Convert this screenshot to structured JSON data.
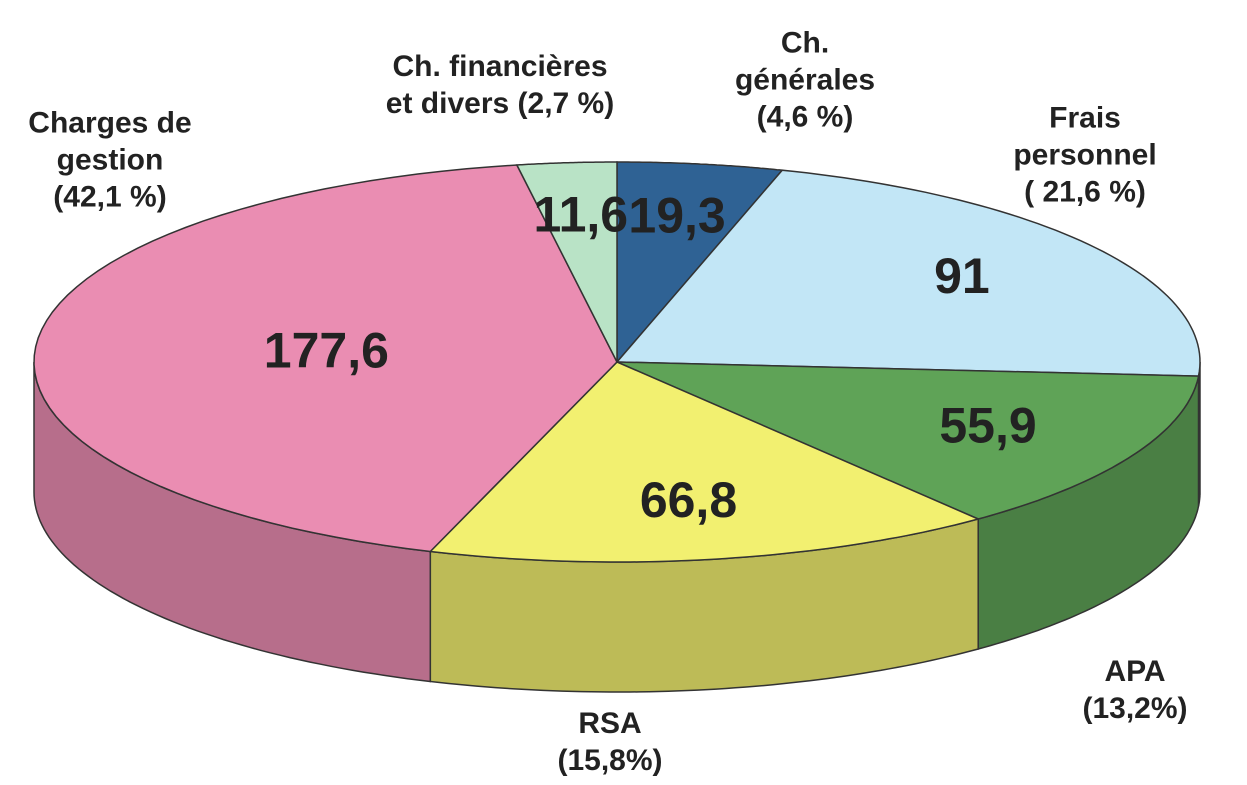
{
  "chart_data": {
    "type": "pie3d",
    "categories": [
      "Ch.\ngénérales\n(4,6 %)",
      "Frais personnel\n( 21,6 %)",
      "APA (13,2%)",
      "RSA\n(15,8%)",
      "Charges de\ngestion\n(42,1 %)",
      "Ch. financières\net divers (2,7 %)"
    ],
    "values": [
      19.3,
      91,
      55.9,
      66.8,
      177.6,
      11.6
    ],
    "value_labels": [
      "19,3",
      "91",
      "55,9",
      "66,8",
      "177,6",
      "11,6"
    ],
    "colors": [
      "#2f6294",
      "#c2e6f6",
      "#5fa357",
      "#f2f070",
      "#ea8db2",
      "#b9e3c6"
    ]
  }
}
